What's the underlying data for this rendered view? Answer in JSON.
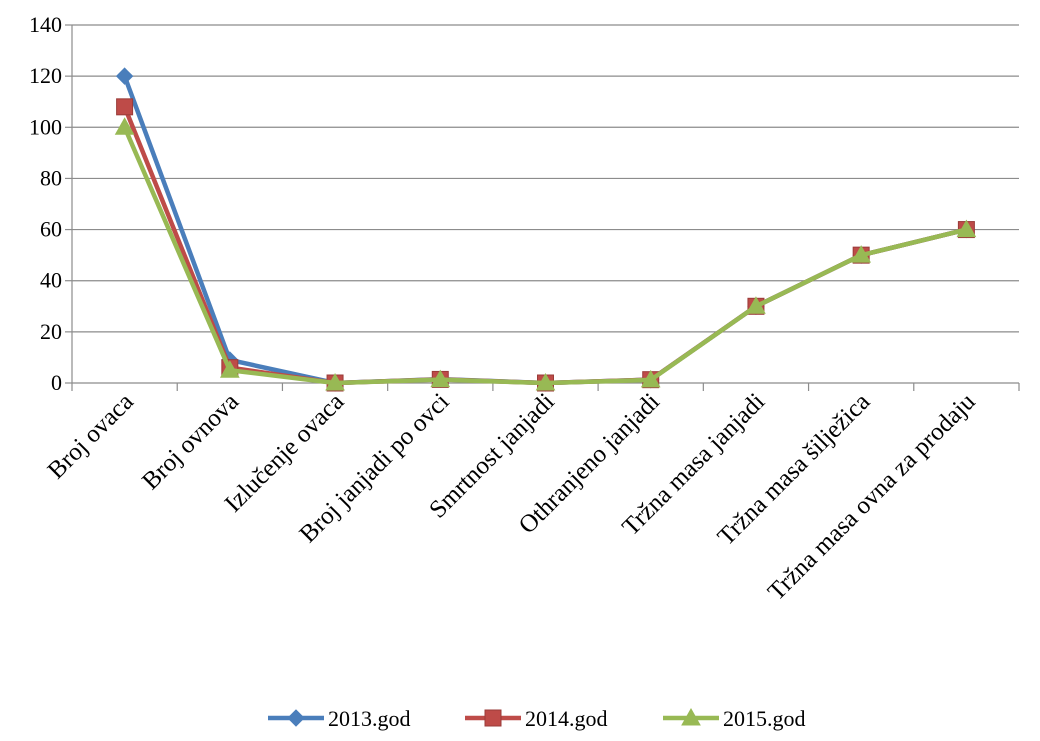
{
  "chart_data": {
    "type": "line",
    "title": "",
    "xlabel": "",
    "ylabel": "",
    "categories": [
      "Broj ovaca",
      "Broj ovnova",
      "Izlučenje ovaca",
      "Broj janjadi po ovci",
      "Smrtnost janjadi",
      "Othranjeno janjadi",
      "Tržna masa janjadi",
      "Tržna masa šilježica",
      "Tržna masa ovna za prodaju"
    ],
    "ylim": [
      0,
      140
    ],
    "yticks": [
      0,
      20,
      40,
      60,
      80,
      100,
      120,
      140
    ],
    "grid": true,
    "legend_position": "bottom",
    "series": [
      {
        "name": "2013.god",
        "color": "#4a7ebb",
        "marker": "diamond",
        "values": [
          120,
          9,
          0,
          1.5,
          0,
          1.3,
          30,
          50,
          60
        ]
      },
      {
        "name": "2014.god",
        "color": "#be4b48",
        "marker": "square",
        "values": [
          108,
          6,
          0,
          1.4,
          0,
          1.3,
          30,
          50,
          60
        ]
      },
      {
        "name": "2015.god",
        "color": "#98b954",
        "marker": "triangle",
        "values": [
          100,
          5,
          0,
          1.3,
          0,
          1.2,
          30,
          50,
          60
        ]
      }
    ]
  }
}
